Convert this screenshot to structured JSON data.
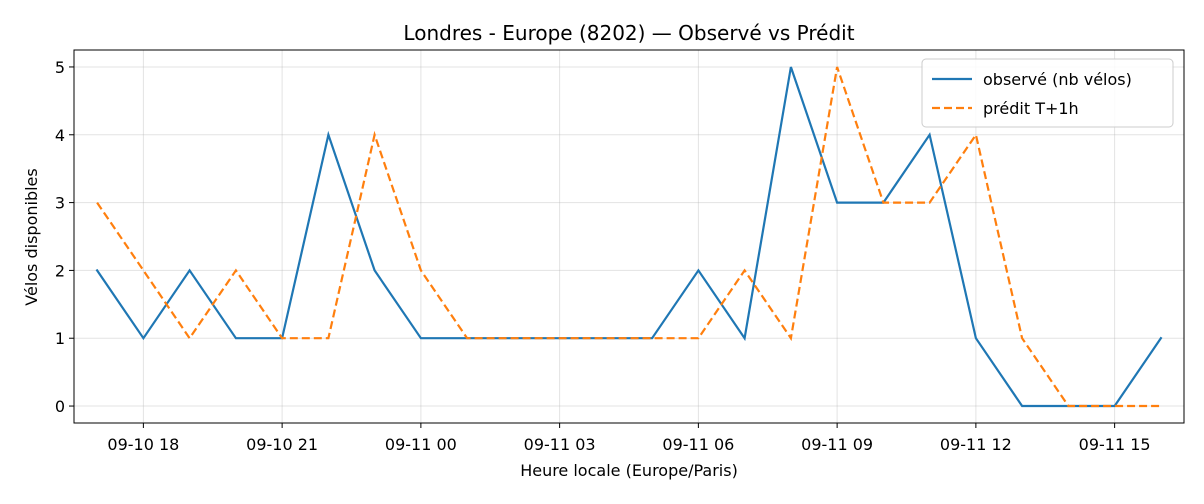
{
  "chart_data": {
    "type": "line",
    "title": "Londres - Europe (8202) — Observé vs Prédit",
    "xlabel": "Heure locale (Europe/Paris)",
    "ylabel": "Vélos disponibles",
    "x": [
      "2023-09-10 17:00",
      "2023-09-10 18:00",
      "2023-09-10 19:00",
      "2023-09-10 20:00",
      "2023-09-10 21:00",
      "2023-09-10 22:00",
      "2023-09-10 23:00",
      "2023-09-11 00:00",
      "2023-09-11 01:00",
      "2023-09-11 02:00",
      "2023-09-11 03:00",
      "2023-09-11 04:00",
      "2023-09-11 05:00",
      "2023-09-11 06:00",
      "2023-09-11 07:00",
      "2023-09-11 08:00",
      "2023-09-11 09:00",
      "2023-09-11 10:00",
      "2023-09-11 11:00",
      "2023-09-11 12:00",
      "2023-09-11 13:00",
      "2023-09-11 14:00",
      "2023-09-11 15:00",
      "2023-09-11 16:00"
    ],
    "xlim": [
      "2023-09-10 16:30",
      "2023-09-11 16:30"
    ],
    "xticks": [
      "09-10 18",
      "09-10 21",
      "09-11 00",
      "09-11 03",
      "09-11 06",
      "09-11 09",
      "09-11 12",
      "09-11 15"
    ],
    "ylim": [
      -0.25,
      5.25
    ],
    "yticks": [
      0,
      1,
      2,
      3,
      4,
      5
    ],
    "grid": true,
    "legend_position": "top-right",
    "series": [
      {
        "name": "observé (nb vélos)",
        "color": "#1f77b4",
        "style": "solid",
        "values": [
          2,
          1,
          2,
          1,
          1,
          4,
          2,
          1,
          1,
          1,
          1,
          1,
          1,
          2,
          1,
          5,
          3,
          3,
          4,
          1,
          0,
          0,
          0,
          1
        ]
      },
      {
        "name": "prédit T+1h",
        "color": "#ff7f0e",
        "style": "dashed",
        "values": [
          3,
          2,
          1,
          2,
          1,
          1,
          4,
          2,
          1,
          1,
          1,
          1,
          1,
          1,
          2,
          1,
          5,
          3,
          3,
          4,
          1,
          0,
          0,
          0
        ]
      }
    ]
  }
}
